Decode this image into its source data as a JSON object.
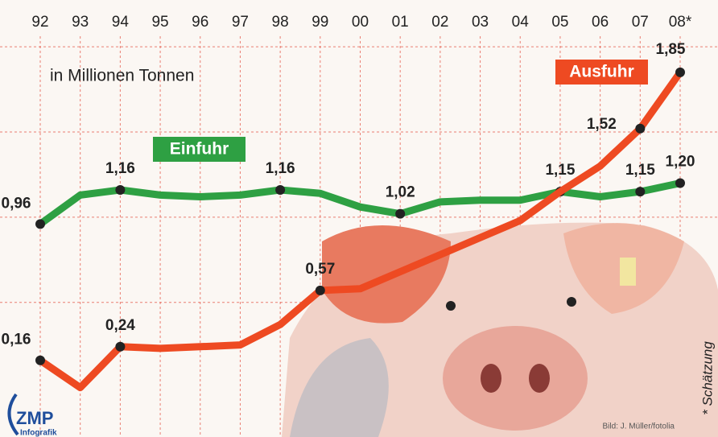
{
  "chart_data": {
    "type": "line",
    "subtitle": "in Millionen Tonnen",
    "categories": [
      "92",
      "93",
      "94",
      "95",
      "96",
      "97",
      "98",
      "99",
      "00",
      "01",
      "02",
      "03",
      "04",
      "05",
      "06",
      "07",
      "08*"
    ],
    "series": [
      {
        "name": "Einfuhr",
        "color": "#2ea043",
        "values": [
          0.96,
          1.13,
          1.16,
          1.13,
          1.12,
          1.13,
          1.16,
          1.14,
          1.06,
          1.02,
          1.09,
          1.1,
          1.1,
          1.15,
          1.12,
          1.15,
          1.2
        ],
        "value_labels": [
          "0,96",
          null,
          "1,16",
          null,
          null,
          null,
          "1,16",
          null,
          null,
          "1,02",
          null,
          null,
          null,
          "1,15",
          null,
          "1,15",
          "1,20"
        ]
      },
      {
        "name": "Ausfuhr",
        "color": "#ee4a22",
        "values": [
          0.16,
          0.0,
          0.24,
          0.23,
          0.24,
          0.25,
          0.37,
          0.57,
          0.58,
          0.68,
          0.78,
          0.88,
          0.98,
          1.15,
          1.3,
          1.52,
          1.85
        ],
        "value_labels": [
          "0,16",
          null,
          "0,24",
          null,
          null,
          null,
          null,
          "0,57",
          null,
          null,
          null,
          null,
          null,
          null,
          null,
          "1,52",
          "1,85"
        ]
      }
    ],
    "ylim": [
      -0.29,
      2.1
    ],
    "yticks": [
      0.5,
      1,
      1.5,
      2
    ],
    "grid": true,
    "note": "* Schätzung",
    "credit": "Bild: J. Müller/fotolia",
    "logo": {
      "name": "ZMP",
      "sub": "Infografik"
    }
  }
}
